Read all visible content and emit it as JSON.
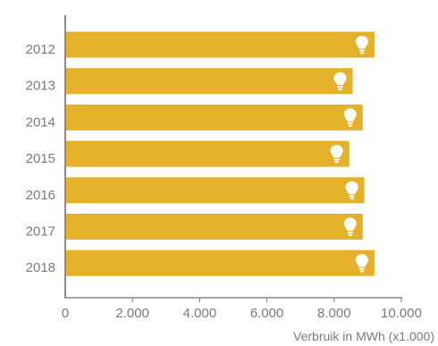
{
  "chart_data": {
    "type": "bar",
    "orientation": "horizontal",
    "categories": [
      "2012",
      "2013",
      "2014",
      "2015",
      "2016",
      "2017",
      "2018"
    ],
    "values": [
      9200,
      8550,
      8850,
      8450,
      8900,
      8850,
      9200
    ],
    "xlabel": "Verbruik in MWh (x1.000)",
    "xlim": [
      0,
      10000
    ],
    "xticks": [
      0,
      2000,
      4000,
      6000,
      8000,
      10000
    ],
    "xtick_labels": [
      "0",
      "2.000",
      "4.000",
      "6.000",
      "8.000",
      "10.000"
    ],
    "grid": false,
    "bar_color": "#e6b12a",
    "icon": "lightbulb-icon",
    "icon_color": "#ffffff"
  }
}
